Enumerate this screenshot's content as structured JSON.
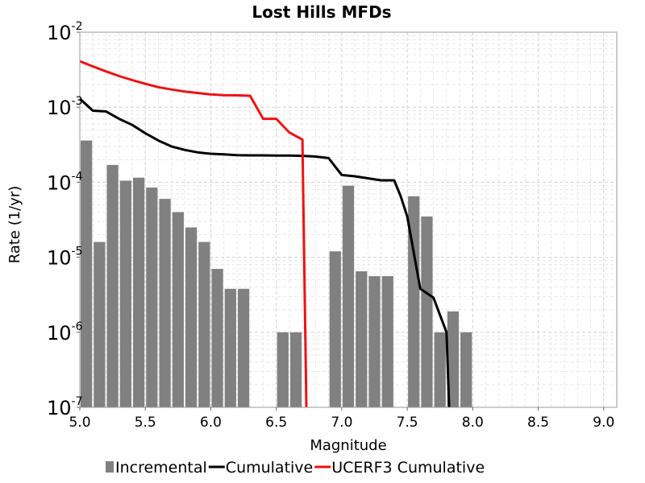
{
  "chart_data": {
    "type": "bar",
    "title": "Lost Hills MFDs",
    "xlabel": "Magnitude",
    "ylabel": "Rate (1/yr)",
    "xlim": [
      5.0,
      9.1
    ],
    "ylim": [
      1e-07,
      0.01
    ],
    "yscale": "log",
    "grid": true,
    "legend_position": "bottom",
    "x_ticks": [
      "5.0",
      "5.5",
      "6.0",
      "6.5",
      "7.0",
      "7.5",
      "8.0",
      "8.5",
      "9.0"
    ],
    "y_ticks": [
      {
        "base": "10",
        "exp": "-7"
      },
      {
        "base": "10",
        "exp": "-6"
      },
      {
        "base": "10",
        "exp": "-5"
      },
      {
        "base": "10",
        "exp": "-4"
      },
      {
        "base": "10",
        "exp": "-3"
      },
      {
        "base": "10",
        "exp": "-2"
      }
    ],
    "series": [
      {
        "name": "Incremental",
        "kind": "bar",
        "color": "#808080",
        "x": [
          5.0,
          5.1,
          5.2,
          5.3,
          5.4,
          5.5,
          5.6,
          5.7,
          5.8,
          5.9,
          6.0,
          6.1,
          6.2,
          6.5,
          6.6,
          6.9,
          7.0,
          7.1,
          7.2,
          7.3,
          7.5,
          7.6,
          7.7,
          7.8,
          7.9
        ],
        "values": [
          0.00036,
          1.6e-05,
          0.00017,
          0.000105,
          0.000115,
          8.5e-05,
          6e-05,
          4e-05,
          2.5e-05,
          1.6e-05,
          7e-06,
          3.8e-06,
          3.8e-06,
          1e-06,
          1e-06,
          1.2e-05,
          9e-05,
          6.5e-06,
          5.6e-06,
          5.6e-06,
          6.5e-05,
          3.5e-05,
          1e-06,
          1.9e-06,
          1e-06
        ]
      },
      {
        "name": "Cumulative",
        "kind": "line",
        "color": "#000000",
        "x": [
          5.0,
          5.1,
          5.2,
          5.3,
          5.4,
          5.5,
          5.6,
          5.7,
          5.8,
          5.9,
          6.0,
          6.1,
          6.2,
          6.3,
          6.4,
          6.5,
          6.6,
          6.7,
          6.8,
          6.9,
          7.0,
          7.1,
          7.2,
          7.3,
          7.4,
          7.45,
          7.5,
          7.6,
          7.7,
          7.8,
          7.82
        ],
        "values": [
          0.0013,
          0.0009,
          0.00088,
          0.0007,
          0.00058,
          0.00045,
          0.00036,
          0.0003,
          0.00027,
          0.00025,
          0.00024,
          0.000235,
          0.00023,
          0.000228,
          0.000228,
          0.000227,
          0.000227,
          0.000225,
          0.00022,
          0.00021,
          0.000125,
          0.00012,
          0.000113,
          0.000106,
          0.000106,
          6.5e-05,
          3.5e-05,
          3.8e-06,
          2.9e-06,
          1e-06,
          1e-07
        ]
      },
      {
        "name": "UCERF3 Cumulative",
        "kind": "line",
        "color": "#ee1111",
        "x": [
          5.0,
          5.1,
          5.2,
          5.3,
          5.4,
          5.5,
          5.6,
          5.7,
          5.8,
          5.9,
          6.0,
          6.1,
          6.2,
          6.3,
          6.4,
          6.5,
          6.6,
          6.7,
          6.73
        ],
        "values": [
          0.0041,
          0.0035,
          0.003,
          0.0026,
          0.0023,
          0.00205,
          0.00185,
          0.00172,
          0.00162,
          0.00155,
          0.00148,
          0.00145,
          0.00144,
          0.00142,
          0.0007,
          0.0007,
          0.00046,
          0.00037,
          1e-07
        ]
      }
    ]
  }
}
